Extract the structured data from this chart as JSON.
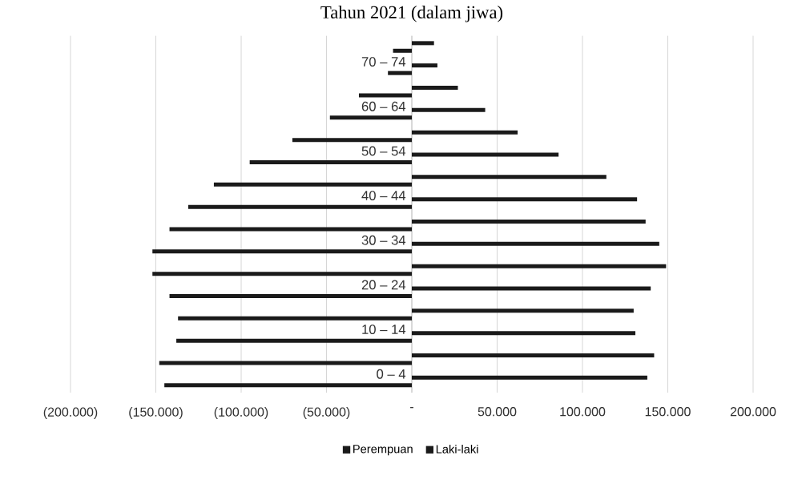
{
  "chart_data": {
    "type": "bar",
    "orientation": "horizontal",
    "title": "Tahun 2021 (dalam jiwa)",
    "categories": [
      null,
      "70 – 74",
      null,
      "60 – 64",
      null,
      "50 – 54",
      null,
      "40 – 44",
      null,
      "30 – 34",
      null,
      "20 – 24",
      null,
      "10 – 14",
      null,
      "0 – 4"
    ],
    "series": [
      {
        "name": "Perempuan",
        "color": "#1a1a1a",
        "values": [
          -11000,
          -14000,
          -31000,
          -48000,
          -70000,
          -95000,
          -116000,
          -131000,
          -142000,
          -152000,
          -152000,
          -142000,
          -137000,
          -138000,
          -148000,
          -145000
        ]
      },
      {
        "name": "Laki-laki",
        "color": "#1a1a1a",
        "values": [
          13000,
          15000,
          27000,
          43000,
          62000,
          86000,
          114000,
          132000,
          137000,
          145000,
          149000,
          140000,
          130000,
          131000,
          142000,
          138000
        ]
      }
    ],
    "xlim": [
      -200000,
      200000
    ],
    "xticks": [
      {
        "value": -200000,
        "label": "(200.000)"
      },
      {
        "value": -150000,
        "label": "(150.000)"
      },
      {
        "value": -100000,
        "label": "(100.000)"
      },
      {
        "value": -50000,
        "label": "(50.000)"
      },
      {
        "value": 0,
        "label": "-"
      },
      {
        "value": 50000,
        "label": "50.000"
      },
      {
        "value": 100000,
        "label": "100.000"
      },
      {
        "value": 150000,
        "label": "150.000"
      },
      {
        "value": 200000,
        "label": "200.000"
      }
    ],
    "grid": "x",
    "legend": "bottom"
  }
}
